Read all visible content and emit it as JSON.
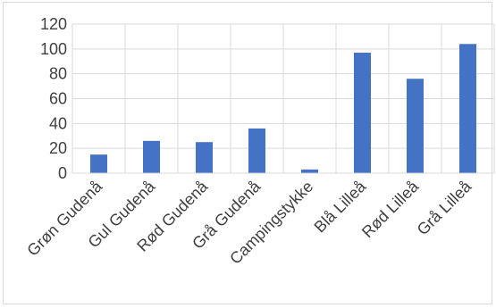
{
  "chart_data": {
    "type": "bar",
    "title": "",
    "xlabel": "",
    "ylabel": "",
    "categories": [
      "Grøn Gudenå",
      "Gul Gudenå",
      "Rød Gudenå",
      "Grå Gudenå",
      "Campingstykke",
      "Blå Lilleå",
      "Rød Lilleå",
      "Grå Lilleå"
    ],
    "values": [
      15,
      26,
      25,
      36,
      3,
      97,
      76,
      104
    ],
    "ylim": [
      0,
      120
    ],
    "yticks": [
      0,
      20,
      40,
      60,
      80,
      100,
      120
    ],
    "grid": true,
    "legend": "none",
    "bar_color": "#4472c4",
    "grid_color": "#d9d9d9"
  }
}
